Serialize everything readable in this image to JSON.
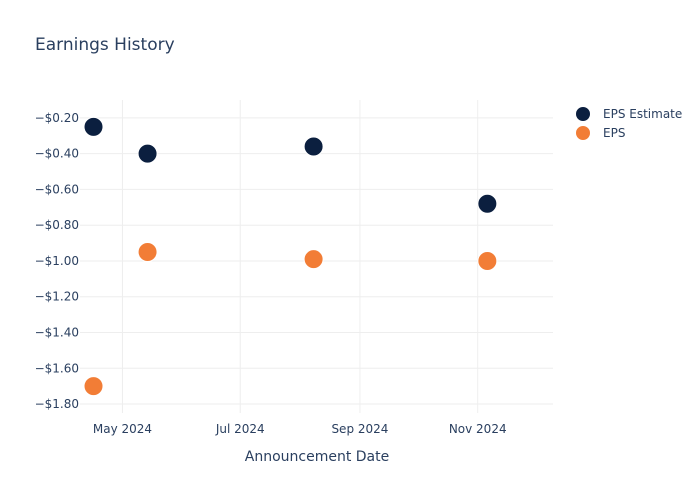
{
  "chart_data": {
    "type": "scatter",
    "title": "Earnings History",
    "xlabel": "Announcement Date",
    "ylabel": "",
    "x_ticks": [
      {
        "date": "2024-05-01",
        "label": "May 2024"
      },
      {
        "date": "2024-07-01",
        "label": "Jul 2024"
      },
      {
        "date": "2024-09-01",
        "label": "Sep 2024"
      },
      {
        "date": "2024-11-01",
        "label": "Nov 2024"
      }
    ],
    "xlim": [
      "2024-04-09",
      "2024-12-10"
    ],
    "y_ticks": [
      {
        "value": -0.2,
        "label": "−$0.20"
      },
      {
        "value": -0.4,
        "label": "−$0.40"
      },
      {
        "value": -0.6,
        "label": "−$0.60"
      },
      {
        "value": -0.8,
        "label": "−$0.80"
      },
      {
        "value": -1.0,
        "label": "−$1.00"
      },
      {
        "value": -1.2,
        "label": "−$1.20"
      },
      {
        "value": -1.4,
        "label": "−$1.40"
      },
      {
        "value": -1.6,
        "label": "−$1.60"
      },
      {
        "value": -1.8,
        "label": "−$1.80"
      }
    ],
    "ylim": [
      -1.85,
      -0.1
    ],
    "grid": true,
    "legend_position": "top-right",
    "series": [
      {
        "name": "EPS Estimate",
        "color": "#0b1f3f",
        "points": [
          {
            "x": "2024-04-16",
            "y": -0.25
          },
          {
            "x": "2024-05-14",
            "y": -0.4
          },
          {
            "x": "2024-08-08",
            "y": -0.36
          },
          {
            "x": "2024-11-06",
            "y": -0.68
          }
        ]
      },
      {
        "name": "EPS",
        "color": "#f27d36",
        "points": [
          {
            "x": "2024-04-16",
            "y": -1.7
          },
          {
            "x": "2024-05-14",
            "y": -0.95
          },
          {
            "x": "2024-08-08",
            "y": -0.99
          },
          {
            "x": "2024-11-06",
            "y": -1.0
          }
        ]
      }
    ]
  }
}
